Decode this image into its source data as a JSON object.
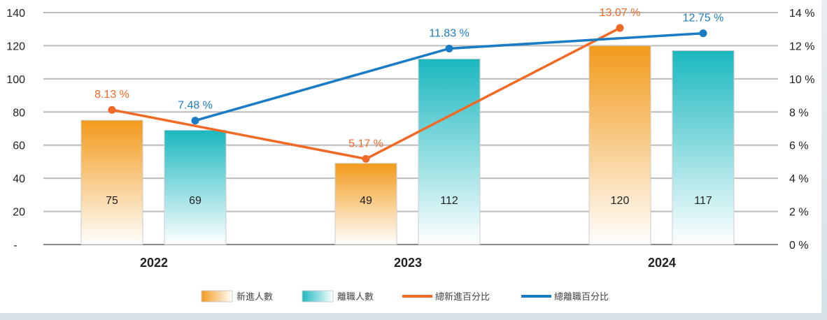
{
  "chart_data": {
    "type": "bar",
    "categories": [
      "2022",
      "2023",
      "2024"
    ],
    "series": [
      {
        "name": "新進人數",
        "kind": "bar",
        "axis": "left",
        "values": [
          75,
          49,
          120
        ],
        "color": "#f29a1b"
      },
      {
        "name": "離職人數",
        "kind": "bar",
        "axis": "left",
        "values": [
          69,
          112,
          117
        ],
        "color": "#1ab8bf"
      },
      {
        "name": "總新進百分比",
        "kind": "line",
        "axis": "right",
        "values": [
          8.13,
          5.17,
          13.07
        ],
        "labels": [
          "8.13 %",
          "5.17 %",
          "13.07 %"
        ],
        "color": "#f06a25"
      },
      {
        "name": "總離職百分比",
        "kind": "line",
        "axis": "right",
        "values": [
          7.48,
          11.83,
          12.75
        ],
        "labels": [
          "7.48 %",
          "11.83 %",
          "12.75 %"
        ],
        "color": "#1a7cc4"
      }
    ],
    "left_axis": {
      "ylim": [
        0,
        140
      ],
      "ticks": [
        "-",
        "20",
        "40",
        "60",
        "80",
        "100",
        "120",
        "140"
      ]
    },
    "right_axis": {
      "ylim": [
        0,
        14
      ],
      "ticks": [
        "0 %",
        "2 %",
        "4 %",
        "6 %",
        "8 %",
        "10 %",
        "12 %",
        "14 %"
      ]
    },
    "grid": true,
    "legend": "bottom"
  }
}
